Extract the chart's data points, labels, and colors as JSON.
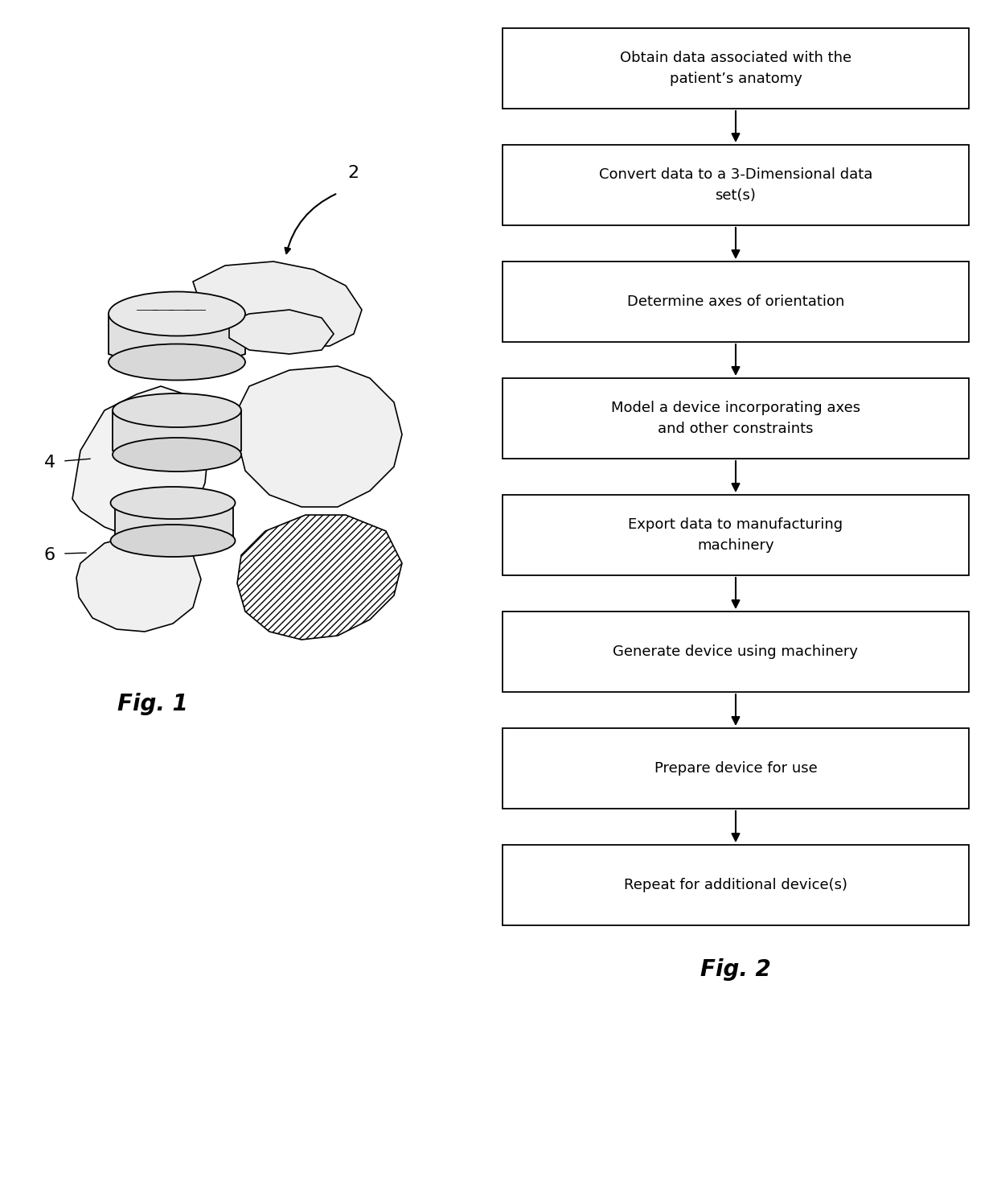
{
  "flowchart_boxes": [
    "Obtain data associated with the\npatient’s anatomy",
    "Convert data to a 3-Dimensional data\nset(s)",
    "Determine axes of orientation",
    "Model a device incorporating axes\nand other constraints",
    "Export data to manufacturing\nmachinery",
    "Generate device using machinery",
    "Prepare device for use",
    "Repeat for additional device(s)"
  ],
  "fig2_label": "Fig. 2",
  "fig1_label": "Fig. 1",
  "label_2": "2",
  "label_4": "4",
  "label_6": "6",
  "box_edge_color": "#000000",
  "box_face_color": "#ffffff",
  "text_color": "#000000",
  "background_color": "#ffffff",
  "fontsize": 13,
  "fig_label_fontsize": 20
}
